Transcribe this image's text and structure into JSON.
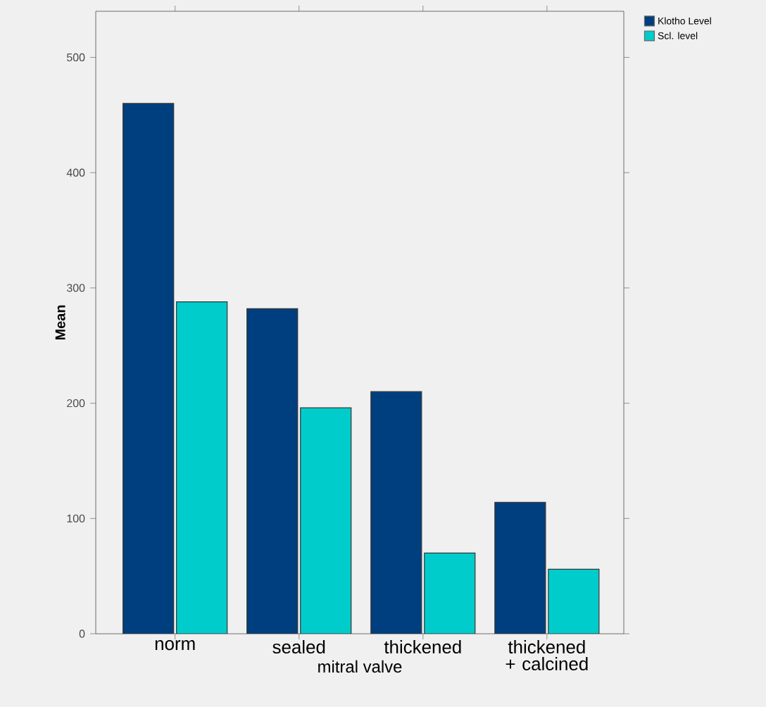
{
  "chart_data": {
    "type": "bar",
    "xlabel": "mitral valve",
    "ylabel": "Mean",
    "categories": [
      "norm",
      "sealed",
      "thickened",
      "thickened + calcined"
    ],
    "series": [
      {
        "name": "Klotho Level",
        "color": "#003f7f",
        "values": [
          460,
          282,
          210,
          114
        ]
      },
      {
        "name": "Scl. level",
        "color": "#00cccc",
        "values": [
          288,
          196,
          70,
          56
        ]
      }
    ],
    "ylim": [
      0,
      540
    ],
    "yticks": [
      0,
      100,
      200,
      300,
      400,
      500
    ],
    "legend": "top right"
  }
}
